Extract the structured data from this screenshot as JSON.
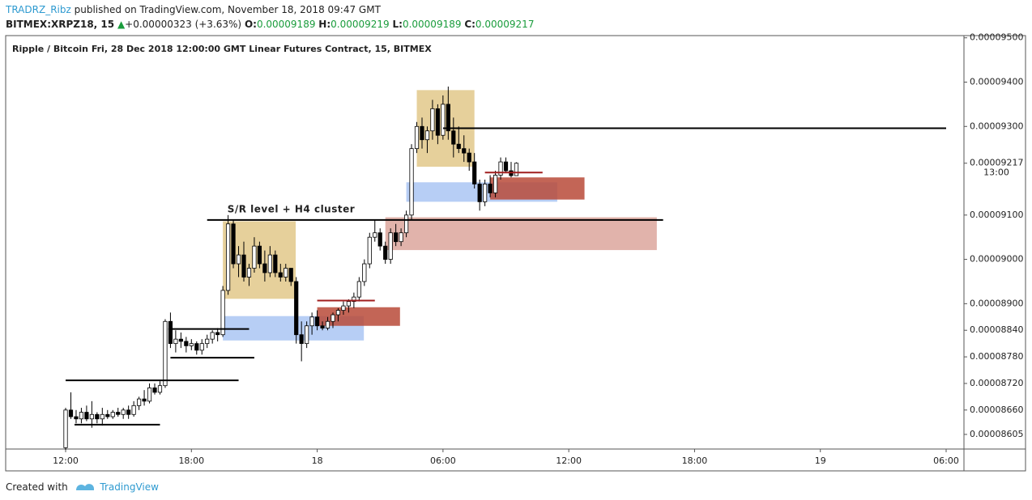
{
  "header": {
    "author": "TRADRZ_Ribz",
    "published": "published on TradingView.com, November 18, 2018 09:47 GMT",
    "symbol": "BITMEX:XRPZ18, 15",
    "change": "+0.00000323 (+3.63%)",
    "o_label": "O:",
    "o": "0.00009189",
    "h_label": "H:",
    "h": "0.00009219",
    "l_label": "L:",
    "l": "0.00009189",
    "c_label": "C:",
    "c": "0.00009217"
  },
  "chart_data": {
    "type": "candlestick",
    "title": "Ripple / Bitcoin Fri, 28 Dec 2018 12:00:00 GMT Linear Futures Contract, 15, BITMEX",
    "up_color": "#ffffff",
    "down_color": "#000000",
    "wick_color": "#000000",
    "xlim": [
      -11.44,
      171.4
    ],
    "xticks": [
      {
        "value": 0,
        "label": "12:00"
      },
      {
        "value": 24,
        "label": "18:00"
      },
      {
        "value": 48,
        "label": "18"
      },
      {
        "value": 72,
        "label": "06:00"
      },
      {
        "value": 96,
        "label": "12:00"
      },
      {
        "value": 120,
        "label": "18:00"
      },
      {
        "value": 144,
        "label": "19"
      },
      {
        "value": 168,
        "label": "06:00"
      }
    ],
    "ylim": [
      8.572e-05,
      9.505e-05
    ],
    "yticks": [
      {
        "value": 9.5e-05,
        "label": "0.00009500"
      },
      {
        "value": 9.4e-05,
        "label": "0.00009400"
      },
      {
        "value": 9.3e-05,
        "label": "0.00009300"
      },
      {
        "value": 9.1e-05,
        "label": "0.00009100"
      },
      {
        "value": 9e-05,
        "label": "0.00009000"
      },
      {
        "value": 8.9e-05,
        "label": "0.00008900"
      },
      {
        "value": 8.84e-05,
        "label": "0.00008840"
      },
      {
        "value": 8.78e-05,
        "label": "0.00008780"
      },
      {
        "value": 8.72e-05,
        "label": "0.00008720"
      },
      {
        "value": 8.66e-05,
        "label": "0.00008660"
      },
      {
        "value": 8.605e-05,
        "label": "0.00008605"
      }
    ],
    "last_price": {
      "value": 9.217e-05,
      "label": "0.00009217",
      "countdown": "13:00"
    },
    "ohlc": [
      [
        8.575e-05,
        8.665e-05,
        8.57e-05,
        8.66e-05
      ],
      [
        8.66e-05,
        8.7e-05,
        8.64e-05,
        8.645e-05
      ],
      [
        8.645e-05,
        8.66e-05,
        8.63e-05,
        8.64e-05
      ],
      [
        8.64e-05,
        8.665e-05,
        8.63e-05,
        8.655e-05
      ],
      [
        8.655e-05,
        8.67e-05,
        8.635e-05,
        8.64e-05
      ],
      [
        8.64e-05,
        8.68e-05,
        8.62e-05,
        8.65e-05
      ],
      [
        8.65e-05,
        8.655e-05,
        8.63e-05,
        8.64e-05
      ],
      [
        8.64e-05,
        8.665e-05,
        8.625e-05,
        8.65e-05
      ],
      [
        8.65e-05,
        8.66e-05,
        8.64e-05,
        8.645e-05
      ],
      [
        8.645e-05,
        8.66e-05,
        8.64e-05,
        8.655e-05
      ],
      [
        8.655e-05,
        8.665e-05,
        8.645e-05,
        8.65e-05
      ],
      [
        8.65e-05,
        8.665e-05,
        8.64e-05,
        8.66e-05
      ],
      [
        8.66e-05,
        8.67e-05,
        8.64e-05,
        8.65e-05
      ],
      [
        8.65e-05,
        8.68e-05,
        8.645e-05,
        8.67e-05
      ],
      [
        8.67e-05,
        8.69e-05,
        8.66e-05,
        8.685e-05
      ],
      [
        8.685e-05,
        8.705e-05,
        8.67e-05,
        8.68e-05
      ],
      [
        8.68e-05,
        8.72e-05,
        8.675e-05,
        8.71e-05
      ],
      [
        8.71e-05,
        8.72e-05,
        8.695e-05,
        8.7e-05
      ],
      [
        8.7e-05,
        8.725e-05,
        8.695e-05,
        8.715e-05
      ],
      [
        8.715e-05,
        8.865e-05,
        8.71e-05,
        8.86e-05
      ],
      [
        8.86e-05,
        8.88e-05,
        8.8e-05,
        8.81e-05
      ],
      [
        8.81e-05,
        8.84e-05,
        8.79e-05,
        8.82e-05
      ],
      [
        8.82e-05,
        8.835e-05,
        8.8e-05,
        8.815e-05
      ],
      [
        8.815e-05,
        8.825e-05,
        8.79e-05,
        8.805e-05
      ],
      [
        8.805e-05,
        8.82e-05,
        8.795e-05,
        8.81e-05
      ],
      [
        8.81e-05,
        8.815e-05,
        8.785e-05,
        8.795e-05
      ],
      [
        8.795e-05,
        8.82e-05,
        8.785e-05,
        8.81e-05
      ],
      [
        8.81e-05,
        8.83e-05,
        8.8e-05,
        8.82e-05
      ],
      [
        8.82e-05,
        8.84e-05,
        8.81e-05,
        8.835e-05
      ],
      [
        8.835e-05,
        8.845e-05,
        8.815e-05,
        8.83e-05
      ],
      [
        8.83e-05,
        8.94e-05,
        8.825e-05,
        8.93e-05
      ],
      [
        8.93e-05,
        9.1e-05,
        8.92e-05,
        9.08e-05
      ],
      [
        9.08e-05,
        9.09e-05,
        8.98e-05,
        8.99e-05
      ],
      [
        8.99e-05,
        9.03e-05,
        8.96e-05,
        9.01e-05
      ],
      [
        9.01e-05,
        9.04e-05,
        8.95e-05,
        8.96e-05
      ],
      [
        8.96e-05,
        8.99e-05,
        8.94e-05,
        8.98e-05
      ],
      [
        8.98e-05,
        9.05e-05,
        8.97e-05,
        9.03e-05
      ],
      [
        9.03e-05,
        9.04e-05,
        8.98e-05,
        8.99e-05
      ],
      [
        8.99e-05,
        9.02e-05,
        8.95e-05,
        8.97e-05
      ],
      [
        8.97e-05,
        9.03e-05,
        8.96e-05,
        9.01e-05
      ],
      [
        9.01e-05,
        9.02e-05,
        8.96e-05,
        8.97e-05
      ],
      [
        8.97e-05,
        8.99e-05,
        8.95e-05,
        8.96e-05
      ],
      [
        8.96e-05,
        8.99e-05,
        8.95e-05,
        8.98e-05
      ],
      [
        8.98e-05,
        8.98e-05,
        8.94e-05,
        8.95e-05
      ],
      [
        8.95e-05,
        8.96e-05,
        8.81e-05,
        8.83e-05
      ],
      [
        8.83e-05,
        8.86e-05,
        8.77e-05,
        8.81e-05
      ],
      [
        8.81e-05,
        8.86e-05,
        8.8e-05,
        8.85e-05
      ],
      [
        8.85e-05,
        8.88e-05,
        8.83e-05,
        8.87e-05
      ],
      [
        8.87e-05,
        8.885e-05,
        8.84e-05,
        8.85e-05
      ],
      [
        8.85e-05,
        8.86e-05,
        8.84e-05,
        8.845e-05
      ],
      [
        8.845e-05,
        8.87e-05,
        8.84e-05,
        8.86e-05
      ],
      [
        8.86e-05,
        8.88e-05,
        8.845e-05,
        8.875e-05
      ],
      [
        8.875e-05,
        8.89e-05,
        8.86e-05,
        8.885e-05
      ],
      [
        8.885e-05,
        8.905e-05,
        8.875e-05,
        8.895e-05
      ],
      [
        8.895e-05,
        8.91e-05,
        8.88e-05,
        8.905e-05
      ],
      [
        8.905e-05,
        8.925e-05,
        8.89e-05,
        8.915e-05
      ],
      [
        8.915e-05,
        8.96e-05,
        8.905e-05,
        8.95e-05
      ],
      [
        8.95e-05,
        9e-05,
        8.94e-05,
        8.99e-05
      ],
      [
        8.99e-05,
        9.06e-05,
        8.98e-05,
        9.05e-05
      ],
      [
        9.05e-05,
        9.09e-05,
        9.04e-05,
        9.06e-05
      ],
      [
        9.06e-05,
        9.07e-05,
        9.02e-05,
        9.03e-05
      ],
      [
        9.03e-05,
        9.04e-05,
        8.99e-05,
        9e-05
      ],
      [
        9e-05,
        9.07e-05,
        8.99e-05,
        9.06e-05
      ],
      [
        9.06e-05,
        9.08e-05,
        9.03e-05,
        9.04e-05
      ],
      [
        9.04e-05,
        9.07e-05,
        9.03e-05,
        9.06e-05
      ],
      [
        9.06e-05,
        9.11e-05,
        9.05e-05,
        9.1e-05
      ],
      [
        9.1e-05,
        9.26e-05,
        9.09e-05,
        9.25e-05
      ],
      [
        9.25e-05,
        9.31e-05,
        9.24e-05,
        9.3e-05
      ],
      [
        9.3e-05,
        9.32e-05,
        9.25e-05,
        9.27e-05
      ],
      [
        9.27e-05,
        9.3e-05,
        9.24e-05,
        9.29e-05
      ],
      [
        9.29e-05,
        9.36e-05,
        9.27e-05,
        9.34e-05
      ],
      [
        9.34e-05,
        9.35e-05,
        9.26e-05,
        9.28e-05
      ],
      [
        9.28e-05,
        9.37e-05,
        9.27e-05,
        9.35e-05
      ],
      [
        9.35e-05,
        9.39e-05,
        9.27e-05,
        9.29e-05
      ],
      [
        9.29e-05,
        9.32e-05,
        9.23e-05,
        9.26e-05
      ],
      [
        9.26e-05,
        9.3e-05,
        9.24e-05,
        9.25e-05
      ],
      [
        9.25e-05,
        9.28e-05,
        9.22e-05,
        9.24e-05
      ],
      [
        9.24e-05,
        9.25e-05,
        9.2e-05,
        9.22e-05
      ],
      [
        9.22e-05,
        9.24e-05,
        9.16e-05,
        9.17e-05
      ],
      [
        9.17e-05,
        9.18e-05,
        9.11e-05,
        9.13e-05
      ],
      [
        9.13e-05,
        9.18e-05,
        9.12e-05,
        9.17e-05
      ],
      [
        9.17e-05,
        9.19e-05,
        9.14e-05,
        9.15e-05
      ],
      [
        9.15e-05,
        9.2e-05,
        9.14e-05,
        9.19e-05
      ],
      [
        9.19e-05,
        9.23e-05,
        9.18e-05,
        9.22e-05
      ],
      [
        9.22e-05,
        9.23e-05,
        9.195e-05,
        9.2e-05
      ],
      [
        9.2e-05,
        9.22e-05,
        9.185e-05,
        9.189e-05
      ],
      [
        9.189e-05,
        9.219e-05,
        9.189e-05,
        9.217e-05
      ]
    ],
    "zones": [
      {
        "x": [
          30,
          43.9
        ],
        "y": [
          8.911e-05,
          9.086e-05
        ],
        "color": "#e2c88a"
      },
      {
        "x": [
          67,
          78
        ],
        "y": [
          9.209e-05,
          9.382e-05
        ],
        "color": "#e2c88a"
      },
      {
        "x": [
          30,
          56.9
        ],
        "y": [
          8.817e-05,
          8.872e-05
        ],
        "color": "#aac6f3"
      },
      {
        "x": [
          65,
          93.8
        ],
        "y": [
          9.13e-05,
          9.174e-05
        ],
        "color": "#aac6f3"
      },
      {
        "x": [
          61,
          112.8
        ],
        "y": [
          9.021e-05,
          9.095e-05
        ],
        "color": "#dca69c"
      },
      {
        "x": [
          48,
          63.8
        ],
        "y": [
          8.85e-05,
          8.892e-05
        ],
        "color": "#b84a38"
      },
      {
        "x": [
          81,
          99
        ],
        "y": [
          9.135e-05,
          9.185e-05
        ],
        "color": "#b84a38"
      }
    ],
    "levels": [
      {
        "x": [
          72,
          168
        ],
        "y": 9.296e-05,
        "color": "#000000"
      },
      {
        "x": [
          27,
          114
        ],
        "y": 9.089e-05,
        "color": "#000000",
        "label": "S/R level + H4 cluster"
      },
      {
        "x": [
          19.6,
          35
        ],
        "y": 8.843e-05,
        "color": "#000000"
      },
      {
        "x": [
          20,
          36
        ],
        "y": 8.778e-05,
        "color": "#000000"
      },
      {
        "x": [
          0,
          33
        ],
        "y": 8.727e-05,
        "color": "#000000"
      },
      {
        "x": [
          1.7,
          18
        ],
        "y": 8.627e-05,
        "color": "#000000"
      },
      {
        "x": [
          48,
          59
        ],
        "y": 8.907e-05,
        "color": "#a01e1e"
      },
      {
        "x": [
          80,
          91
        ],
        "y": 9.196e-05,
        "color": "#a01e1e"
      }
    ]
  },
  "footer": {
    "created": "Created with",
    "brand": "TradingView"
  }
}
